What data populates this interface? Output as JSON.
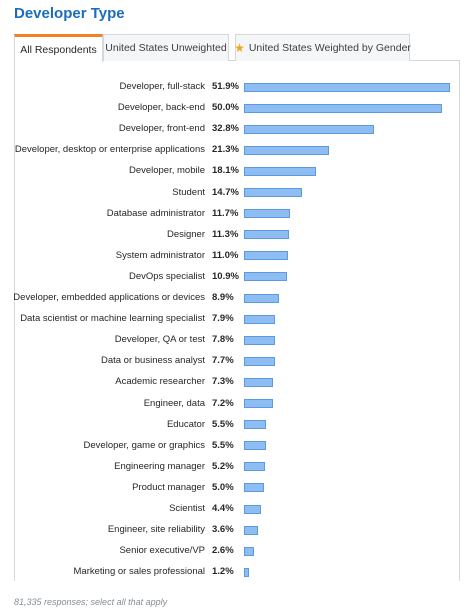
{
  "title": "Developer Type",
  "tabs": [
    {
      "label": "All Respondents",
      "active": true
    },
    {
      "label": "United States Unweighted",
      "active": false
    },
    {
      "label": "United States Weighted by Gender",
      "active": false,
      "icon": "star-icon"
    }
  ],
  "chart_data": {
    "type": "bar",
    "orientation": "horizontal",
    "value_suffix": "%",
    "bar_color": "#8dbdf2",
    "bar_border_color": "#5b9be0",
    "xlim": [
      0,
      51.9
    ],
    "categories": [
      "Developer, full-stack",
      "Developer, back-end",
      "Developer, front-end",
      "Developer, desktop or enterprise applications",
      "Developer, mobile",
      "Student",
      "Database administrator",
      "Designer",
      "System administrator",
      "DevOps specialist",
      "Developer, embedded applications or devices",
      "Data scientist or machine learning specialist",
      "Developer, QA or test",
      "Data or business analyst",
      "Academic researcher",
      "Engineer, data",
      "Educator",
      "Developer, game or graphics",
      "Engineering manager",
      "Product manager",
      "Scientist",
      "Engineer, site reliability",
      "Senior executive/VP",
      "Marketing or sales professional"
    ],
    "values": [
      51.9,
      50.0,
      32.8,
      21.3,
      18.1,
      14.7,
      11.7,
      11.3,
      11.0,
      10.9,
      8.9,
      7.9,
      7.8,
      7.7,
      7.3,
      7.2,
      5.5,
      5.5,
      5.2,
      5.0,
      4.4,
      3.6,
      2.6,
      1.2
    ],
    "labels": [
      "51.9%",
      "50.0%",
      "32.8%",
      "21.3%",
      "18.1%",
      "14.7%",
      "11.7%",
      "11.3%",
      "11.0%",
      "10.9%",
      "8.9%",
      "7.9%",
      "7.8%",
      "7.7%",
      "7.3%",
      "7.2%",
      "5.5%",
      "5.5%",
      "5.2%",
      "5.0%",
      "4.4%",
      "3.6%",
      "2.6%",
      "1.2%"
    ]
  },
  "footer": "81,335 responses; select all that apply"
}
